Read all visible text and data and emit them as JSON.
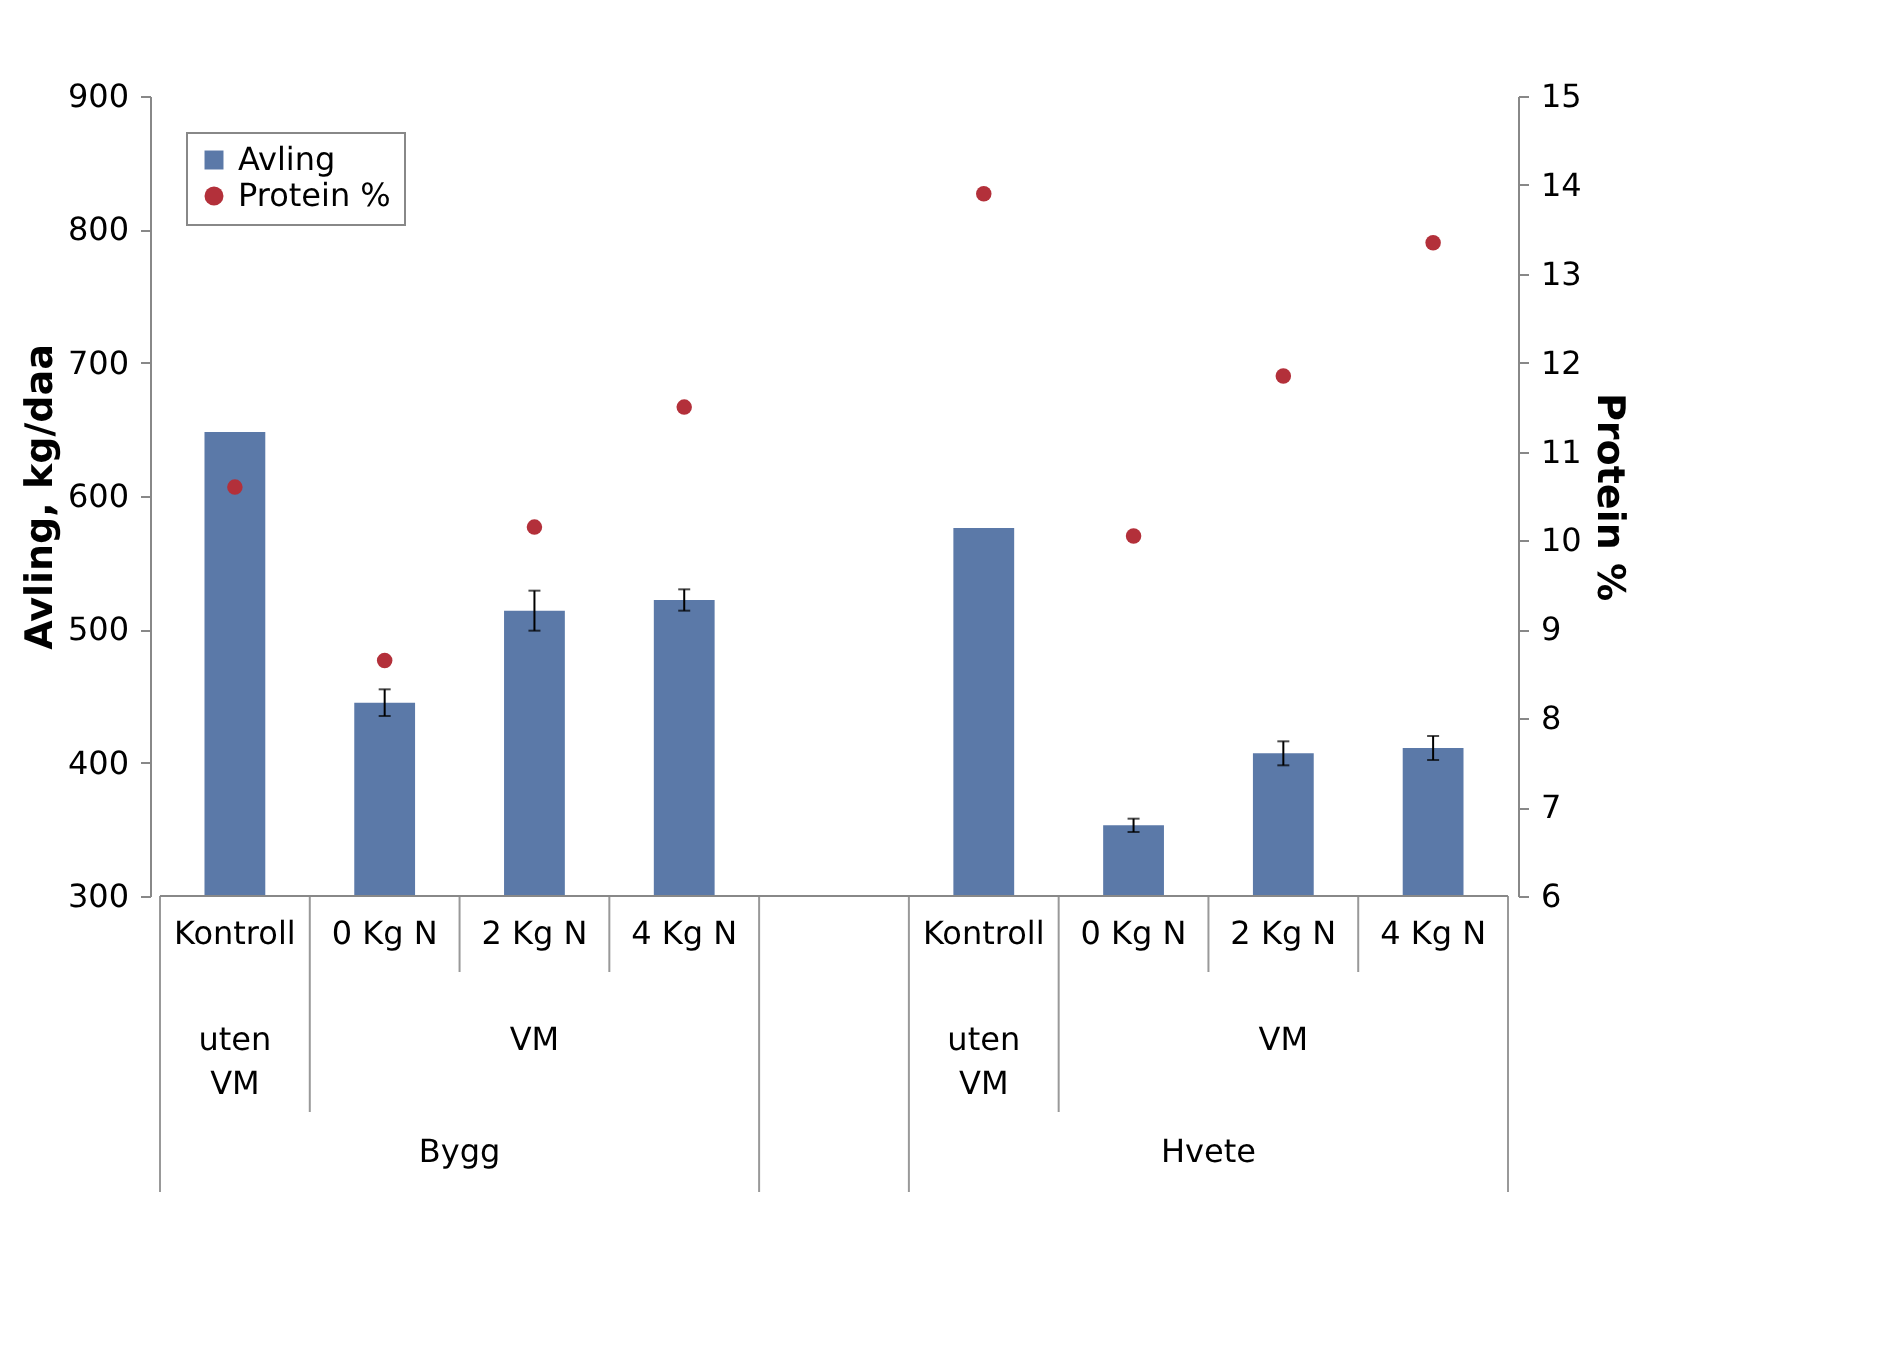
{
  "chart_data": {
    "type": "bar",
    "ylabel": "Avling, kg/daa",
    "y2label": "Protein %",
    "categories": [
      "Kontroll",
      "0 Kg N",
      "2 Kg N",
      "4 Kg N",
      null,
      "Kontroll",
      "0 Kg N",
      "2 Kg N",
      "4 Kg N"
    ],
    "series": [
      {
        "name": "Avling",
        "color": "#5b79a8",
        "values": [
          648,
          445,
          514,
          522,
          null,
          576,
          353,
          407,
          411
        ],
        "errors": [
          null,
          10,
          15,
          8,
          null,
          null,
          5,
          9,
          9
        ]
      },
      {
        "name": "Protein %",
        "type": "scatter",
        "axis": "y2",
        "color": "#b3303a",
        "marker": "circle",
        "values": [
          10.6,
          8.65,
          10.15,
          11.5,
          null,
          13.9,
          10.05,
          11.85,
          13.35
        ]
      }
    ],
    "ylim": [
      300,
      900
    ],
    "yticks": [
      300,
      400,
      500,
      600,
      700,
      800,
      900
    ],
    "y2lim": [
      6,
      15
    ],
    "y2ticks": [
      6,
      7,
      8,
      9,
      10,
      11,
      12,
      13,
      14,
      15
    ],
    "annotations": [
      "uten VM",
      "VM",
      "uten VM",
      "VM",
      "Bygg",
      "Hvete"
    ],
    "legend": "top left",
    "grid": false
  }
}
